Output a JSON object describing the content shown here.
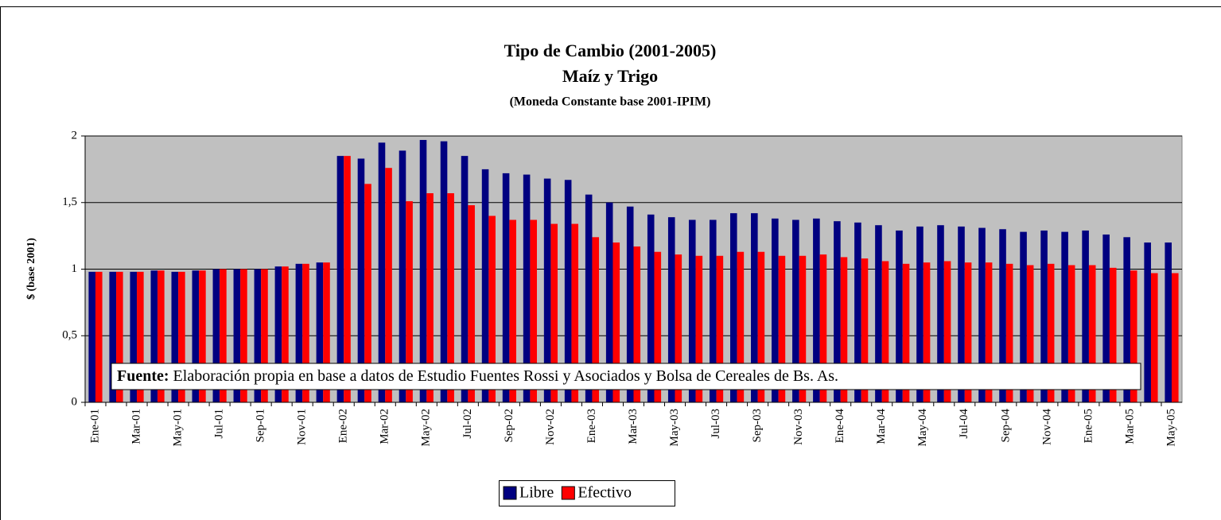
{
  "chart_data": {
    "type": "bar",
    "title": "Tipo de Cambio (2001-2005)",
    "subtitle": "Maíz y Trigo",
    "subtitle2": "(Moneda Constante base 2001-IPIM)",
    "y_label": "$ (base 2001)",
    "note": {
      "label": "Fuente:",
      "text": "Elaboración propia en base a datos de Estudio Fuentes Rossi y Asociados y Bolsa de Cereales de Bs. As."
    },
    "categories": [
      "Ene-01",
      null,
      "Mar-01",
      null,
      "May-01",
      null,
      "Jul-01",
      null,
      "Sep-01",
      null,
      "Nov-01",
      null,
      "Ene-02",
      null,
      "Mar-02",
      null,
      "May-02",
      null,
      "Jul-02",
      null,
      "Sep-02",
      null,
      "Nov-02",
      null,
      "Ene-03",
      null,
      "Mar-03",
      null,
      "May-03",
      null,
      "Jul-03",
      null,
      "Sep-03",
      null,
      "Nov-03",
      null,
      "Ene-04",
      null,
      "Mar-04",
      null,
      "May-04",
      null,
      "Jul-04",
      null,
      "Sep-04",
      null,
      "Nov-04",
      null,
      "Ene-05",
      null,
      "Mar-05",
      null,
      "May-05"
    ],
    "series": [
      {
        "name": "Libre",
        "color": "#000080",
        "values": [
          0.98,
          0.98,
          0.98,
          0.99,
          0.98,
          0.99,
          1.0,
          1.0,
          1.0,
          1.02,
          1.04,
          1.05,
          1.85,
          1.83,
          1.95,
          1.89,
          1.97,
          1.96,
          1.85,
          1.75,
          1.72,
          1.71,
          1.68,
          1.67,
          1.56,
          1.5,
          1.47,
          1.41,
          1.39,
          1.37,
          1.37,
          1.42,
          1.42,
          1.38,
          1.37,
          1.38,
          1.36,
          1.35,
          1.33,
          1.29,
          1.32,
          1.33,
          1.32,
          1.31,
          1.3,
          1.28,
          1.29,
          1.28,
          1.29,
          1.26,
          1.24,
          1.2,
          1.2
        ]
      },
      {
        "name": "Efectivo",
        "color": "#ff0000",
        "values": [
          0.98,
          0.98,
          0.98,
          0.99,
          0.98,
          0.99,
          1.0,
          1.0,
          1.0,
          1.02,
          1.04,
          1.05,
          1.85,
          1.64,
          1.76,
          1.51,
          1.57,
          1.57,
          1.48,
          1.4,
          1.37,
          1.37,
          1.34,
          1.34,
          1.24,
          1.2,
          1.17,
          1.13,
          1.11,
          1.1,
          1.1,
          1.13,
          1.13,
          1.1,
          1.1,
          1.11,
          1.09,
          1.08,
          1.06,
          1.04,
          1.05,
          1.06,
          1.05,
          1.05,
          1.04,
          1.03,
          1.04,
          1.03,
          1.03,
          1.01,
          0.99,
          0.97,
          0.97
        ]
      }
    ],
    "ylim": [
      0,
      2
    ],
    "yticks": [
      0,
      {
        "value": 0.5,
        "label": "0,5"
      },
      1,
      {
        "value": 1.5,
        "label": "1,5"
      },
      2
    ],
    "grid": true,
    "plot_background": "#c0c0c0",
    "legend": "bottom"
  }
}
